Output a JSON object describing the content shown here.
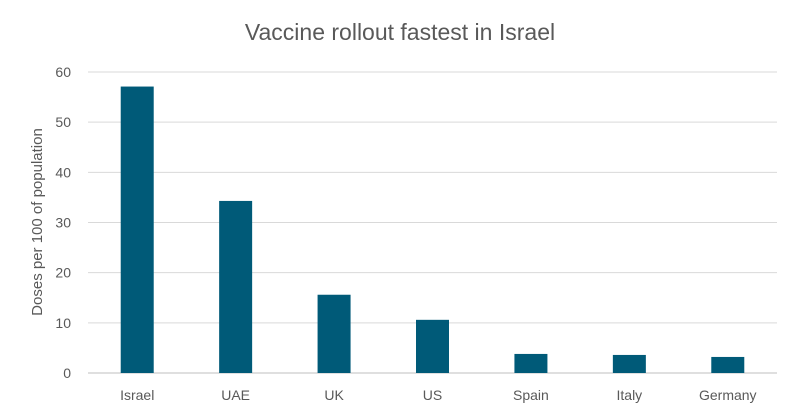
{
  "chart_data": {
    "type": "bar",
    "title": "Vaccine rollout fastest in Israel",
    "xlabel": "",
    "ylabel": "Doses per 100 of population",
    "categories": [
      "Israel",
      "UAE",
      "UK",
      "US",
      "Spain",
      "Italy",
      "Germany"
    ],
    "values": [
      57.1,
      34.3,
      15.6,
      10.6,
      3.8,
      3.6,
      3.2
    ],
    "ylim": [
      0,
      60
    ],
    "yticks": [
      0,
      10,
      20,
      30,
      40,
      50,
      60
    ],
    "grid": true,
    "legend": "none",
    "colors": {
      "bar": "#005a78",
      "text": "#595959",
      "grid": "#d9d9d9"
    }
  }
}
